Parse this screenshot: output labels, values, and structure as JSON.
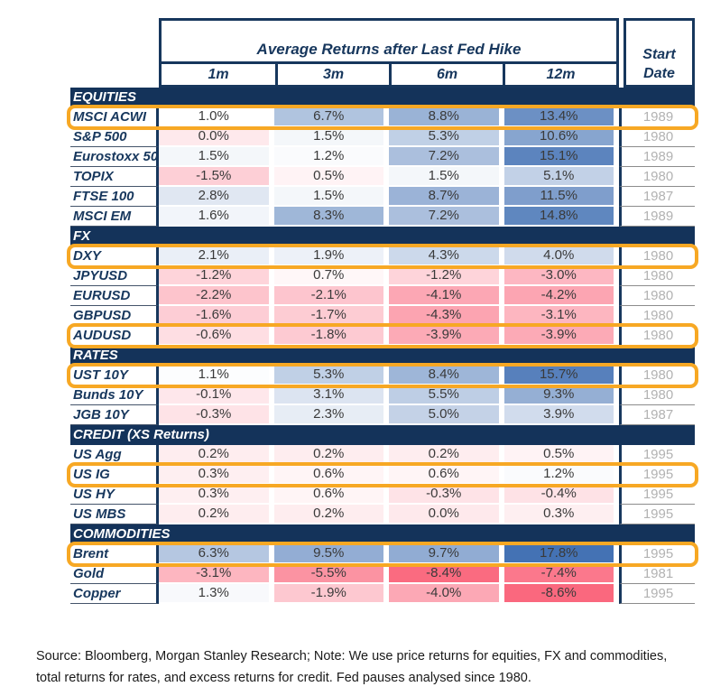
{
  "chart_data": {
    "type": "table",
    "title": "Average Returns after Last Fed Hike",
    "columns": [
      "1m",
      "3m",
      "6m",
      "12m"
    ],
    "start_column_label": "Start Date",
    "unit": "%",
    "color_scale": {
      "min": -8.6,
      "mid": 1.0,
      "max": 17.8,
      "min_color": "#FA687E",
      "mid_color": "#FFFFFF",
      "max_color": "#4472B4"
    },
    "highlight_color": "#F7A824",
    "sections": [
      {
        "label": "EQUITIES",
        "rows": [
          {
            "label": "MSCI ACWI",
            "values": [
              1.0,
              6.7,
              8.8,
              13.4
            ],
            "start_date": "1989",
            "highlighted": true
          },
          {
            "label": "S&P 500",
            "values": [
              0.0,
              1.5,
              5.3,
              10.6
            ],
            "start_date": "1980",
            "highlighted": false
          },
          {
            "label": "Eurostoxx 50",
            "values": [
              1.5,
              1.2,
              7.2,
              15.1
            ],
            "start_date": "1989",
            "highlighted": false
          },
          {
            "label": "TOPIX",
            "values": [
              -1.5,
              0.5,
              1.5,
              5.1
            ],
            "start_date": "1980",
            "highlighted": false
          },
          {
            "label": "FTSE 100",
            "values": [
              2.8,
              1.5,
              8.7,
              11.5
            ],
            "start_date": "1987",
            "highlighted": false
          },
          {
            "label": "MSCI EM",
            "values": [
              1.6,
              8.3,
              7.2,
              14.8
            ],
            "start_date": "1989",
            "highlighted": false
          }
        ]
      },
      {
        "label": "FX",
        "rows": [
          {
            "label": "DXY",
            "values": [
              2.1,
              1.9,
              4.3,
              4.0
            ],
            "start_date": "1980",
            "highlighted": true
          },
          {
            "label": "JPYUSD",
            "values": [
              -1.2,
              0.7,
              -1.2,
              -3.0
            ],
            "start_date": "1980",
            "highlighted": false
          },
          {
            "label": "EURUSD",
            "values": [
              -2.2,
              -2.1,
              -4.1,
              -4.2
            ],
            "start_date": "1980",
            "highlighted": false
          },
          {
            "label": "GBPUSD",
            "values": [
              -1.6,
              -1.7,
              -4.3,
              -3.1
            ],
            "start_date": "1980",
            "highlighted": false
          },
          {
            "label": "AUDUSD",
            "values": [
              -0.6,
              -1.8,
              -3.9,
              -3.9
            ],
            "start_date": "1980",
            "highlighted": true
          }
        ]
      },
      {
        "label": "RATES",
        "rows": [
          {
            "label": "UST 10Y",
            "values": [
              1.1,
              5.3,
              8.4,
              15.7
            ],
            "start_date": "1980",
            "highlighted": true
          },
          {
            "label": "Bunds 10Y",
            "values": [
              -0.1,
              3.1,
              5.5,
              9.3
            ],
            "start_date": "1980",
            "highlighted": false
          },
          {
            "label": "JGB 10Y",
            "values": [
              -0.3,
              2.3,
              5.0,
              3.9
            ],
            "start_date": "1987",
            "highlighted": false
          }
        ]
      },
      {
        "label": "CREDIT (XS Returns)",
        "rows": [
          {
            "label": "US Agg",
            "values": [
              0.2,
              0.2,
              0.2,
              0.5
            ],
            "start_date": "1995",
            "highlighted": false
          },
          {
            "label": "US IG",
            "values": [
              0.3,
              0.6,
              0.6,
              1.2
            ],
            "start_date": "1995",
            "highlighted": true
          },
          {
            "label": "US HY",
            "values": [
              0.3,
              0.6,
              -0.3,
              -0.4
            ],
            "start_date": "1995",
            "highlighted": false
          },
          {
            "label": "US MBS",
            "values": [
              0.2,
              0.2,
              0.0,
              0.3
            ],
            "start_date": "1995",
            "highlighted": false
          }
        ]
      },
      {
        "label": "COMMODITIES",
        "rows": [
          {
            "label": "Brent",
            "values": [
              6.3,
              9.5,
              9.7,
              17.8
            ],
            "start_date": "1995",
            "highlighted": true
          },
          {
            "label": "Gold",
            "values": [
              -3.1,
              -5.5,
              -8.4,
              -7.4
            ],
            "start_date": "1981",
            "highlighted": false
          },
          {
            "label": "Copper",
            "values": [
              1.3,
              -1.9,
              -4.0,
              -8.6
            ],
            "start_date": "1995",
            "highlighted": false
          }
        ]
      }
    ]
  },
  "colors": {
    "navy": "#17375D",
    "section_bar": "#14335A",
    "highlight": "#F7A824",
    "value_text": "#3A3A3A",
    "start_date_text": "#B2B2B2"
  },
  "footer": {
    "text": "Source: Bloomberg, Morgan Stanley Research; Note: We use price returns for equities, FX and commodities, total returns for rates, and excess returns for credit. Fed pauses analysed since 1980."
  }
}
